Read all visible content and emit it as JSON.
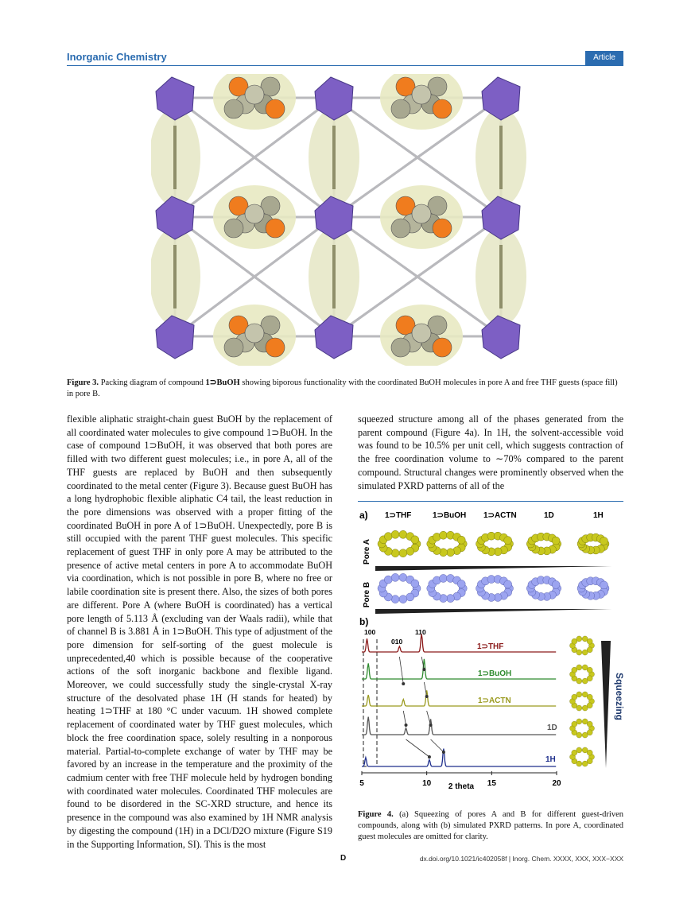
{
  "header": {
    "journal": "Inorganic Chemistry",
    "badge": "Article"
  },
  "figure3": {
    "caption_label": "Figure 3.",
    "caption_compound": "1⊃BuOH",
    "caption_text_1": "Packing diagram of compound",
    "caption_text_2": "showing biporous functionality with the coordinated BuOH molecules in pore A and free THF guests (space fill) in pore B."
  },
  "body_left": [
    "flexible aliphatic straight-chain guest BuOH by the replacement of all coordinated water molecules to give compound 1⊃BuOH. In the case of compound 1⊃BuOH, it was observed that both pores are filled with two different guest molecules; i.e., in pore A, all of the THF guests are replaced by BuOH and then subsequently coordinated to the metal center (Figure 3). Because guest BuOH has a long hydrophobic flexible aliphatic C4 tail, the least reduction in the pore dimensions was observed with a proper fitting of the coordinated BuOH in pore A of 1⊃BuOH. Unexpectedly, pore B is still occupied with the parent THF guest molecules. This specific replacement of guest THF in only pore A may be attributed to the presence of active metal centers in pore A to accommodate BuOH via coordination, which is not possible in pore B, where no free or labile coordination site is present there. Also, the sizes of both pores are different. Pore A (where BuOH is coordinated) has a vertical pore length of 5.113 Å (excluding van der Waals radii), while that of channel B is 3.881 Å in 1⊃BuOH. This type of adjustment of the pore dimension for self-sorting of the guest molecule is unprecedented,40 which is possible because of the cooperative actions of the soft inorganic backbone and flexible ligand. Moreover, we could successfully study the single-crystal X-ray structure of the desolvated phase 1H (H stands for heated) by heating 1⊃THF at 180 °C under vacuum. 1H showed complete replacement of coordinated water by THF guest molecules, which block the free coordination space, solely resulting in a nonporous material. Partial-to-complete exchange of water by THF may be favored by an increase in the temperature and the proximity of the cadmium center with free THF molecule held by hydrogen bonding with coordinated water molecules. Coordinated THF molecules are found to be disordered in the SC-XRD structure, and hence its presence in the compound was also examined by 1H NMR analysis by digesting the compound (1H) in a DCl/D2O mixture (Figure S19 in the Supporting Information, SI). This is the most"
  ],
  "body_right": [
    "squeezed structure among all of the phases generated from the parent compound (Figure 4a). In 1H, the solvent-accessible void was found to be 10.5% per unit cell, which suggests contraction of the free coordination volume to ∼70% compared to the parent compound. Structural changes were prominently observed when the simulated PXRD patterns of all of the"
  ],
  "figure4": {
    "panel_a": "a)",
    "panel_b": "b)",
    "pore_a": "Pore A",
    "pore_b": "Pore B",
    "columns": [
      "1⊃THF",
      "1⊃BuOH",
      "1⊃ACTN",
      "1D",
      "1H"
    ],
    "squeezing": "Squeezing",
    "peak_100": "100",
    "peak_010": "010",
    "peak_110": "110",
    "caption_label": "Figure 4.",
    "caption_text": "(a) Squeezing of pores A and B for different guest-driven compounds, along with (b) simulated PXRD patterns. In pore A, coordinated guest molecules are omitted for clarity.",
    "colors": {
      "THF": "#8b1a1a",
      "BuOH": "#2e8b2e",
      "ACTN": "#9a9a1e",
      "D": "#555555",
      "H": "#1f2f8c"
    }
  },
  "chart_data": {
    "type": "line",
    "xlabel": "2 theta",
    "x_ticks": [
      5,
      10,
      15,
      20
    ],
    "xlim": [
      5,
      20
    ],
    "series": [
      {
        "name": "1⊃THF",
        "peaks": [
          [
            5.4,
            0.6
          ],
          [
            7.9,
            0.25
          ],
          [
            9.6,
            0.8
          ]
        ]
      },
      {
        "name": "1⊃BuOH",
        "peaks": [
          [
            5.5,
            0.7
          ],
          [
            9.8,
            0.9
          ]
        ]
      },
      {
        "name": "1⊃ACTN",
        "peaks": [
          [
            5.5,
            0.5
          ],
          [
            8.2,
            0.3
          ],
          [
            10.0,
            0.7
          ]
        ]
      },
      {
        "name": "1D",
        "peaks": [
          [
            5.5,
            0.8
          ],
          [
            8.4,
            0.3
          ],
          [
            10.3,
            0.7
          ]
        ]
      },
      {
        "name": "1H",
        "peaks": [
          [
            5.3,
            0.4
          ],
          [
            10.2,
            0.3
          ],
          [
            11.3,
            0.8
          ]
        ]
      }
    ]
  },
  "footer": {
    "page": "D",
    "doi": "dx.doi.org/10.1021/ic402058f | Inorg. Chem. XXXX, XXX, XXX−XXX"
  }
}
